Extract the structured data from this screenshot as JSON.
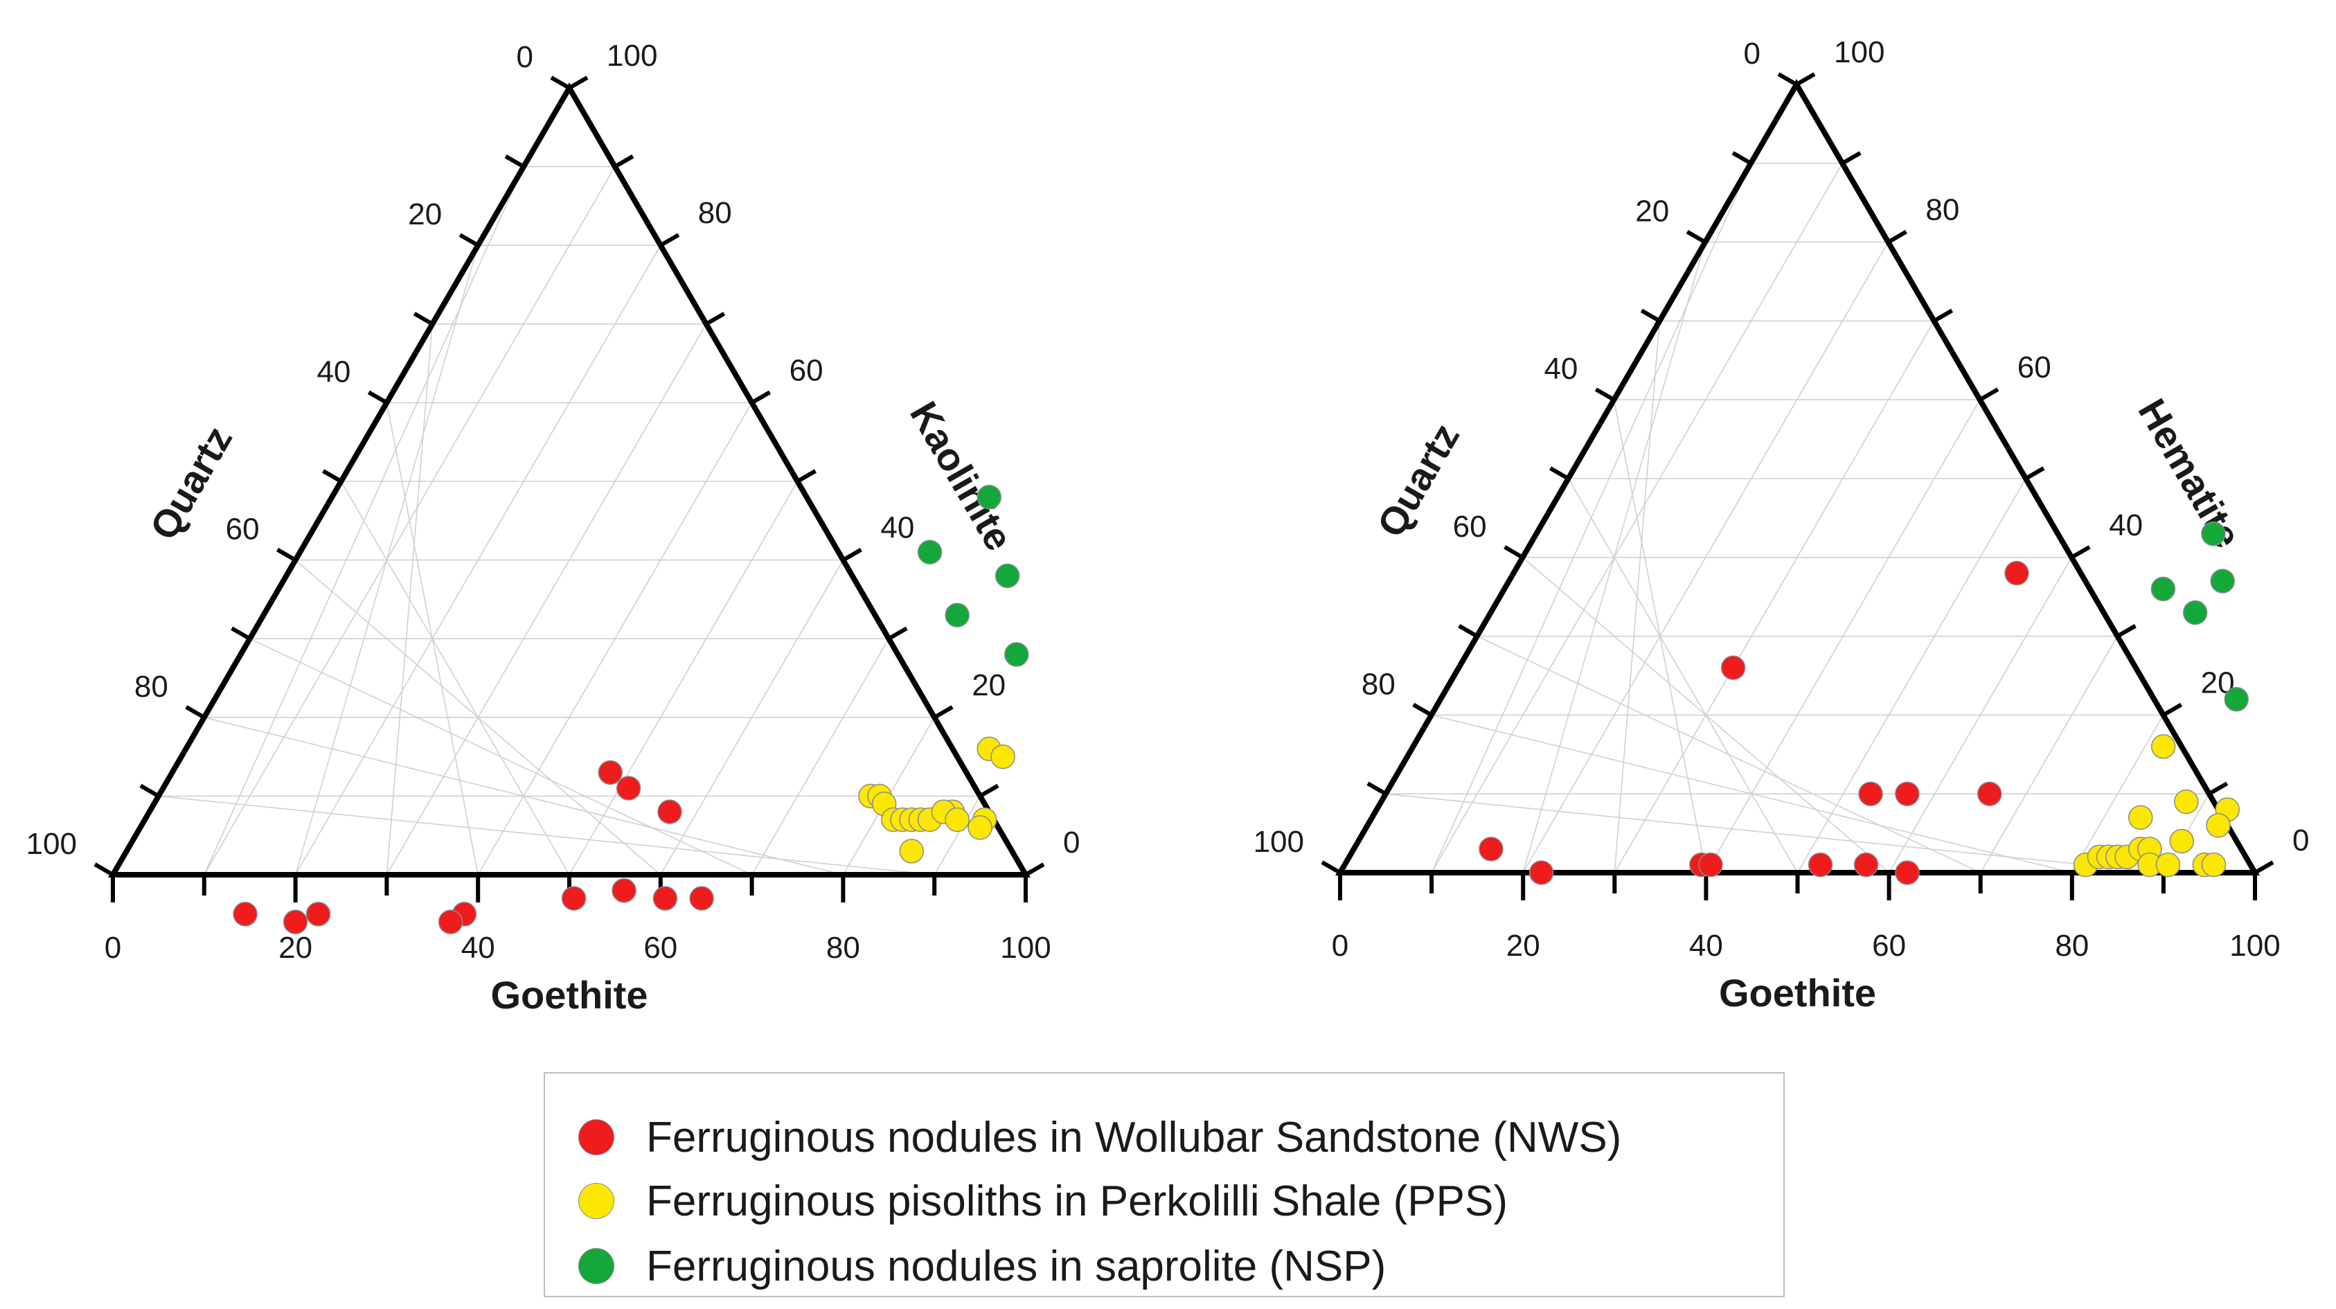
{
  "chart_data": [
    {
      "type": "ternary-scatter",
      "axes": {
        "bottom": {
          "title": "Goethite",
          "ticks": [
            "0",
            "20",
            "40",
            "60",
            "80",
            "100"
          ]
        },
        "left": {
          "title": "Quartz",
          "ticks": [
            "100",
            "80",
            "60",
            "40",
            "20",
            "0"
          ]
        },
        "right": {
          "title": "Kaolinite",
          "ticks": [
            "0",
            "20",
            "40",
            "60",
            "80",
            "100"
          ]
        }
      },
      "grid": true,
      "series": [
        {
          "name": "NWS",
          "color": "#ee1c1c",
          "points": [
            [
              17,
              88,
              -5
            ],
            [
              25,
              80,
              -5
            ],
            [
              23,
              83,
              -6
            ],
            [
              41,
              64,
              -5
            ],
            [
              40,
              66,
              -6
            ],
            [
              48,
              39,
              13
            ],
            [
              51,
              38,
              11
            ],
            [
              57,
              35,
              8
            ],
            [
              52,
              51,
              -3
            ],
            [
              57,
              45,
              -2
            ],
            [
              62,
              41,
              -3
            ],
            [
              66,
              37,
              -3
            ]
          ]
        },
        {
          "name": "PPS",
          "color": "#fbe700",
          "points": [
            [
              78,
              12,
              10
            ],
            [
              79,
              11,
              10
            ],
            [
              80,
              11,
              9
            ],
            [
              82,
              11,
              7
            ],
            [
              83,
              10,
              7
            ],
            [
              84,
              9,
              7
            ],
            [
              85,
              8,
              7
            ],
            [
              86,
              7,
              7
            ],
            [
              88,
              4,
              8
            ],
            [
              87,
              5,
              8
            ],
            [
              89,
              4,
              7
            ],
            [
              92,
              1,
              7
            ],
            [
              92,
              2,
              6
            ],
            [
              86,
              11,
              3
            ],
            [
              88,
              -4,
              16
            ],
            [
              90,
              -5,
              15
            ]
          ]
        },
        {
          "name": "NSP",
          "color": "#14a83b",
          "points": [
            [
              72,
              -20,
              48
            ],
            [
              69,
              -10,
              41
            ],
            [
              79,
              -17,
              38
            ],
            [
              76,
              -9,
              33
            ],
            [
              85,
              -13,
              28
            ]
          ]
        }
      ]
    },
    {
      "type": "ternary-scatter",
      "axes": {
        "bottom": {
          "title": "Goethite",
          "ticks": [
            "0",
            "20",
            "40",
            "60",
            "80",
            "100"
          ]
        },
        "left": {
          "title": "Quartz",
          "ticks": [
            "100",
            "80",
            "60",
            "40",
            "20",
            "0"
          ]
        },
        "right": {
          "title": "Hematite",
          "ticks": [
            "0",
            "20",
            "40",
            "60",
            "80",
            "100"
          ]
        }
      },
      "grid": true,
      "series": [
        {
          "name": "NWS",
          "color": "#ee1c1c",
          "points": [
            [
              15,
              82,
              3
            ],
            [
              22,
              78,
              0
            ],
            [
              39,
              60,
              1
            ],
            [
              40,
              59,
              1
            ],
            [
              53,
              37,
              10
            ],
            [
              30,
              44,
              26
            ],
            [
              57,
              33,
              10
            ],
            [
              52,
              47,
              1
            ],
            [
              57,
              42,
              1
            ],
            [
              62,
              38,
              0
            ],
            [
              66,
              24,
              10
            ],
            [
              55,
              7,
              38
            ]
          ]
        },
        {
          "name": "PPS",
          "color": "#fbe700",
          "points": [
            [
              81,
              18,
              1
            ],
            [
              82,
              16,
              2
            ],
            [
              83,
              15,
              2
            ],
            [
              84,
              14,
              2
            ],
            [
              85,
              13,
              2
            ],
            [
              86,
              11,
              3
            ],
            [
              87,
              10,
              3
            ],
            [
              88,
              11,
              1
            ],
            [
              90,
              9,
              1
            ],
            [
              94,
              5,
              1
            ],
            [
              95,
              4,
              1
            ],
            [
              84,
              9,
              7
            ],
            [
              88,
              3,
              9
            ],
            [
              90,
              6,
              4
            ],
            [
              93,
              -1,
              8
            ],
            [
              93,
              1,
              6
            ],
            [
              82,
              2,
              16
            ]
          ]
        },
        {
          "name": "NSP",
          "color": "#14a83b",
          "points": [
            [
              74,
              -17,
              43
            ],
            [
              72,
              -8,
              36
            ],
            [
              78,
              -15,
              37
            ],
            [
              77,
              -10,
              33
            ],
            [
              87,
              -9,
              22
            ]
          ]
        }
      ]
    }
  ],
  "legend": {
    "items": [
      {
        "label": "Ferruginous nodules in Wollubar Sandstone (NWS)",
        "color": "#ee1c1c"
      },
      {
        "label": "Ferruginous pisoliths in Perkolilli Shale (PPS)",
        "color": "#fbe700"
      },
      {
        "label": "Ferruginous nodules in saprolite (NSP)",
        "color": "#14a83b"
      }
    ]
  }
}
